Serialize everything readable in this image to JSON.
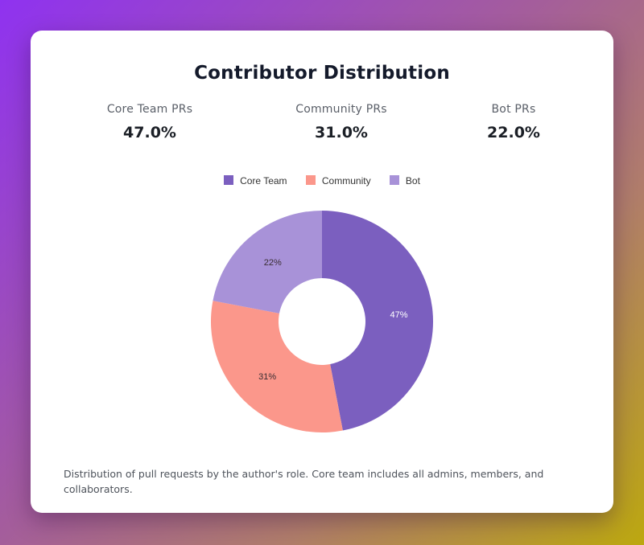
{
  "header": {
    "title": "Contributor Distribution"
  },
  "stats": [
    {
      "label": "Core Team PRs",
      "value": "47.0%"
    },
    {
      "label": "Community PRs",
      "value": "31.0%"
    },
    {
      "label": "Bot PRs",
      "value": "22.0%"
    }
  ],
  "footnote": "Distribution of pull requests by the author's role. Core team includes all admins, members, and collaborators.",
  "chart_data": {
    "type": "pie",
    "variant": "doughnut",
    "categories": [
      "Core Team",
      "Community",
      "Bot"
    ],
    "values": [
      47,
      31,
      22
    ],
    "value_labels": [
      "47%",
      "31%",
      "22%"
    ],
    "colors": [
      "#7b5fbf",
      "#fb978b",
      "#a892d8"
    ],
    "legend_position": "top"
  }
}
